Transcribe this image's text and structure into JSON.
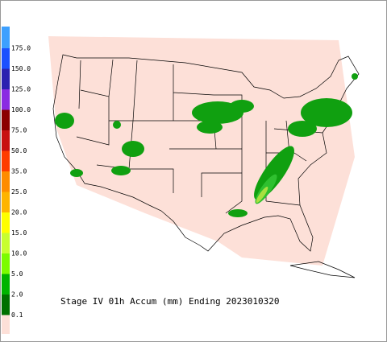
{
  "title": "Stage IV 01h Accum (mm) Ending 2023010320",
  "legend": {
    "labels": [
      "175.0",
      "150.0",
      "125.0",
      "100.0",
      "75.0",
      "50.0",
      "35.0",
      "25.0",
      "20.0",
      "15.0",
      "10.0",
      "5.0",
      "2.0",
      "0.1"
    ],
    "colors": [
      "#3da0ff",
      "#1c50ff",
      "#2a22b0",
      "#8a2be2",
      "#8b0000",
      "#c81010",
      "#ff3c00",
      "#ff8c00",
      "#ffb400",
      "#ffff00",
      "#c8ff30",
      "#7cfc00",
      "#00b400",
      "#007000",
      "#fde0d8"
    ]
  }
}
